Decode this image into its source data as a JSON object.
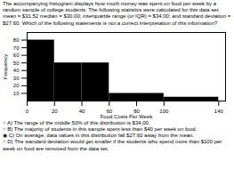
{
  "chart_data": {
    "type": "histogram",
    "title": "The accompanying histogram displays how much money was spent on food per week by a random sample of college students. The following statistics were calculated for this data set: mean = $31.52 median = $30.00; interquartile range (or IQR) = $34.00; and standard deviation = $27.60. Which of the following statements is not a correct interpretation of this information?",
    "x_label": "Food Costs Per Week",
    "y_label": "Frequency",
    "bins": [
      0,
      20,
      40,
      60,
      80,
      100,
      140
    ],
    "values": [
      80,
      50,
      50,
      10,
      10,
      5
    ],
    "xlim": [
      0,
      145
    ],
    "ylim": [
      0,
      90
    ],
    "xticks": [
      0,
      20,
      40,
      60,
      80,
      100,
      140
    ],
    "yticks": [
      10,
      20,
      30,
      40,
      50,
      60,
      70,
      80
    ],
    "annotations": [
      "○ A) The range of the middle 50% of this distribution is $34.00.",
      "○ B) The majority of students in this sample spent less than $40 per week on food.",
      "◉ C) On average, data values in this distribution fall $27.60 away from the mean.",
      "○ D) The standard deviation would get smaller if the students who spend more than $100 per week on food are removed from the data set."
    ]
  }
}
